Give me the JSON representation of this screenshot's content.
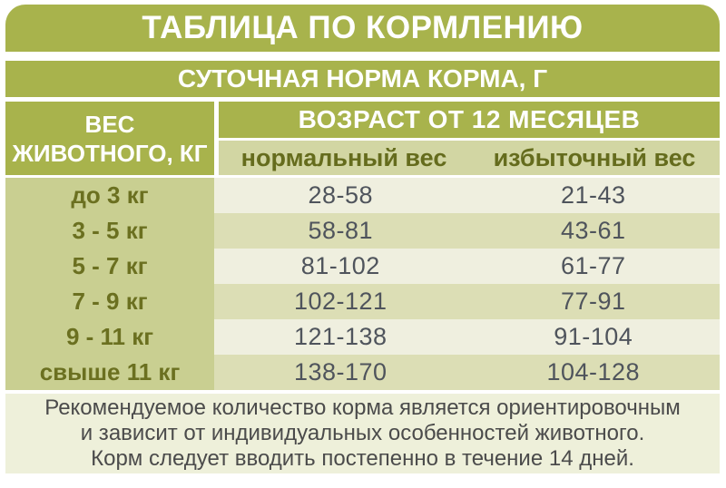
{
  "title": "ТАБЛИЦА ПО КОРМЛЕНИЮ",
  "subtitle": "СУТОЧНАЯ НОРМА КОРМА, Г",
  "table": {
    "weight_header_line1": "ВЕС",
    "weight_header_line2": "ЖИВОТНОГО, КГ",
    "age_header": "ВОЗРАСТ ОТ 12 МЕСЯЦЕВ",
    "col_normal": "нормальный вес",
    "col_overweight": "избыточный вес",
    "rows": [
      {
        "weight": "до 3 кг",
        "normal": "28-58",
        "overweight": "21-43"
      },
      {
        "weight": "3 - 5 кг",
        "normal": "58-81",
        "overweight": "43-61"
      },
      {
        "weight": "5 - 7 кг",
        "normal": "81-102",
        "overweight": "61-77"
      },
      {
        "weight": "7 - 9 кг",
        "normal": "102-121",
        "overweight": "77-91"
      },
      {
        "weight": "9 - 11 кг",
        "normal": "121-138",
        "overweight": "91-104"
      },
      {
        "weight": "свыше 11 кг",
        "normal": "138-170",
        "overweight": "104-128"
      }
    ]
  },
  "footer": {
    "line1": "Рекомендуемое количество корма является ориентировочным",
    "line2": "и зависит от индивидуальных особенностей животного.",
    "line3": "Корм следует вводить постепенно в течение 14 дней."
  },
  "colors": {
    "olive": "#a8b34c",
    "label_column": "#c9cf91",
    "subheader_band": "#d2d6a3",
    "row_light": "#efefdf",
    "row_dark": "#dcdeb5",
    "footer_bg": "#eef0da",
    "header_text": "#ffffff",
    "olive_text": "#6b7020",
    "value_text": "#4f545c",
    "footer_text": "#4b4b4b"
  },
  "chart_data": {
    "type": "table",
    "title": "ТАБЛИЦА ПО КОРМЛЕНИЮ",
    "subtitle": "СУТОЧНАЯ НОРМА КОРМА, Г",
    "column_group": "ВОЗРАСТ ОТ 12 МЕСЯЦЕВ",
    "columns": [
      "ВЕС ЖИВОТНОГО, КГ",
      "нормальный вес",
      "избыточный вес"
    ],
    "rows": [
      [
        "до 3 кг",
        "28-58",
        "21-43"
      ],
      [
        "3 - 5 кг",
        "58-81",
        "43-61"
      ],
      [
        "5 - 7 кг",
        "81-102",
        "61-77"
      ],
      [
        "7 - 9 кг",
        "102-121",
        "77-91"
      ],
      [
        "9 - 11 кг",
        "121-138",
        "91-104"
      ],
      [
        "свыше 11 кг",
        "138-170",
        "104-128"
      ]
    ],
    "note": "Рекомендуемое количество корма является ориентировочным и зависит от индивидуальных особенностей животного. Корм следует вводить постепенно в течение 14 дней."
  }
}
